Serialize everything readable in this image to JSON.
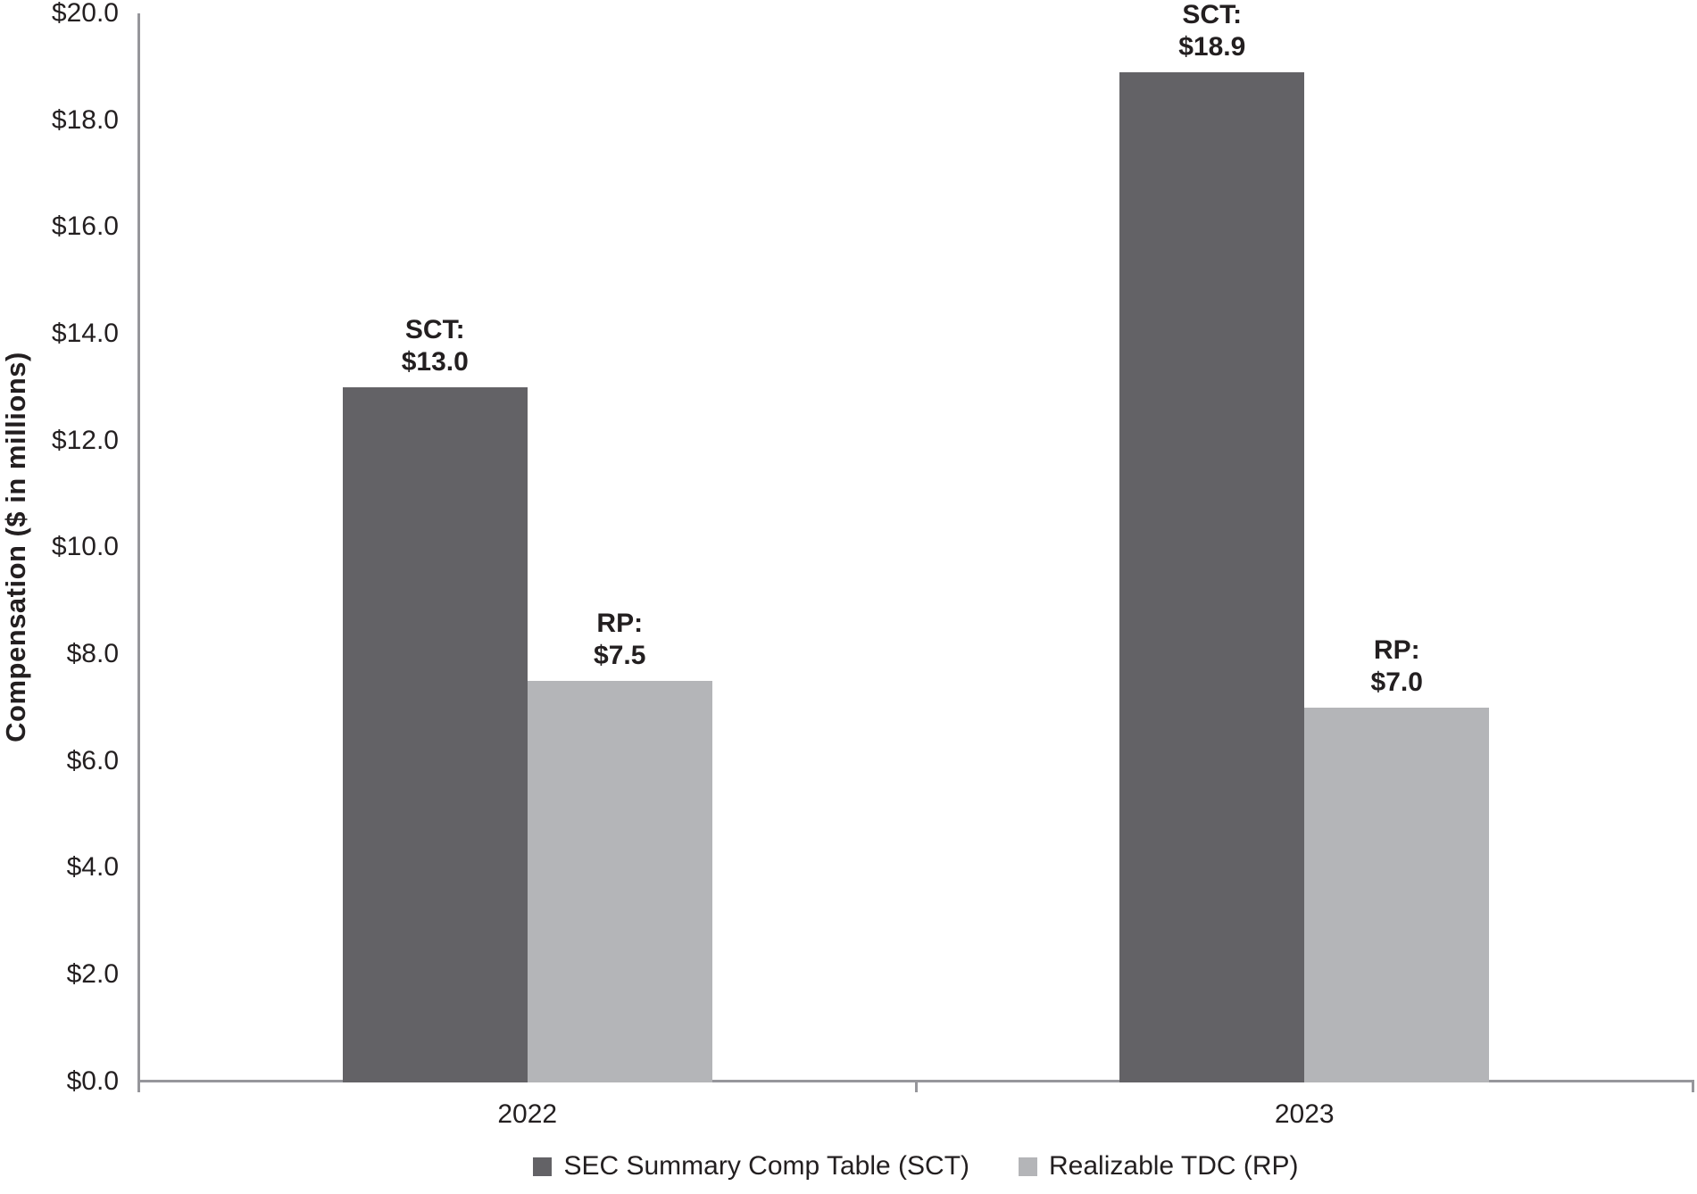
{
  "chart_data": {
    "type": "bar",
    "categories": [
      "2022",
      "2023"
    ],
    "series": [
      {
        "name": "SEC Summary Comp Table (SCT)",
        "short": "SCT",
        "color": "#636266",
        "values": [
          13.0,
          18.9
        ]
      },
      {
        "name": "Realizable TDC (RP)",
        "short": "RP",
        "color": "#b4b5b8",
        "values": [
          7.5,
          7.0
        ]
      }
    ],
    "bar_labels": [
      [
        [
          "SCT:",
          "$13.0"
        ],
        [
          "SCT:",
          "$18.9"
        ]
      ],
      [
        [
          "RP:",
          "$7.5"
        ],
        [
          "RP:",
          "$7.0"
        ]
      ]
    ],
    "title": "",
    "xlabel": "",
    "ylabel": "Compensation ($ in millions)",
    "ylim": [
      0,
      20
    ],
    "ytick_step": 2,
    "ytick_labels": [
      "$0.0",
      "$2.0",
      "$4.0",
      "$6.0",
      "$8.0",
      "$10.0",
      "$12.0",
      "$14.0",
      "$16.0",
      "$18.0",
      "$20.0"
    ],
    "grid": false,
    "legend_position": "bottom-center",
    "legend_entries": [
      "SEC Summary Comp Table (SCT)",
      "Realizable TDC (RP)"
    ],
    "colors": {
      "axis": "#96969b",
      "text": "#231f20",
      "series_dark": "#636266",
      "series_light": "#b4b5b8"
    }
  }
}
